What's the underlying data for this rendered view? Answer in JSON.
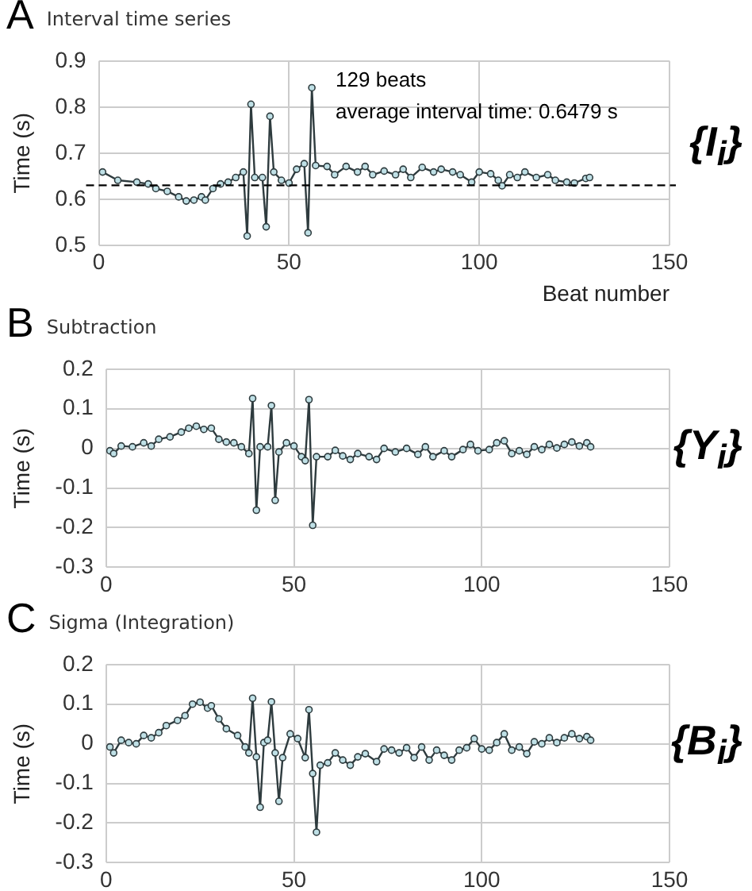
{
  "chart_data": [
    {
      "type": "line",
      "title": "Interval time series",
      "xlabel": "Beat number",
      "ylabel": "Time (s)",
      "annotations": [
        "A",
        "{I$_{i}$}",
        "129 beats",
        "average interval time: 0.6479 s"
      ],
      "series": [
        {
          "color": "#2e3b3e",
          "x": [
            1,
            5,
            10,
            13,
            15,
            18,
            21,
            23,
            25,
            27,
            28,
            30,
            32,
            34,
            36,
            38,
            39,
            40,
            41,
            43,
            44,
            45,
            46,
            48,
            50,
            52,
            54,
            55,
            56,
            57,
            60,
            62,
            65,
            68,
            70,
            72,
            75,
            78,
            80,
            82,
            85,
            88,
            90,
            93,
            95,
            98,
            100,
            103,
            105,
            106,
            108,
            110,
            112,
            115,
            118,
            120,
            123,
            125,
            128,
            129
          ],
          "values": [
            0.659,
            0.641,
            0.637,
            0.633,
            0.623,
            0.617,
            0.605,
            0.596,
            0.598,
            0.605,
            0.598,
            0.623,
            0.633,
            0.637,
            0.647,
            0.659,
            0.52,
            0.806,
            0.647,
            0.647,
            0.54,
            0.78,
            0.659,
            0.641,
            0.635,
            0.665,
            0.677,
            0.527,
            0.842,
            0.673,
            0.671,
            0.653,
            0.671,
            0.659,
            0.671,
            0.653,
            0.661,
            0.653,
            0.665,
            0.647,
            0.669,
            0.659,
            0.665,
            0.659,
            0.653,
            0.637,
            0.659,
            0.655,
            0.641,
            0.629,
            0.653,
            0.647,
            0.659,
            0.647,
            0.653,
            0.641,
            0.637,
            0.635,
            0.645,
            0.647
          ]
        }
      ],
      "xlim": [
        0,
        150
      ],
      "xticks": [
        0,
        50,
        100,
        150
      ],
      "ylim": [
        0.5,
        0.9
      ],
      "yticks": [
        0.5,
        0.6,
        0.7,
        0.8,
        0.9
      ],
      "ref_lines": [
        {
          "axis": "y",
          "value": 0.63,
          "color": "#000000",
          "line_style": "dashed"
        }
      ],
      "grid": true,
      "legend": false,
      "marker": "circle",
      "line_style": "solid"
    },
    {
      "type": "line",
      "title": "Subtraction",
      "ylabel": "Time (s)",
      "annotations": [
        "B",
        "{Y$_{i}$}"
      ],
      "series": [
        {
          "color": "#2e3b3e",
          "x": [
            1,
            2,
            4,
            7,
            10,
            12,
            14,
            17,
            20,
            22,
            24,
            26,
            28,
            30,
            32,
            34,
            36,
            38,
            39,
            40,
            41,
            43,
            44,
            45,
            46,
            48,
            50,
            52,
            53,
            54,
            55,
            56,
            59,
            61,
            63,
            65,
            67,
            70,
            72,
            74,
            77,
            80,
            83,
            85,
            87,
            90,
            92,
            95,
            97,
            99,
            102,
            104,
            106,
            108,
            110,
            112,
            114,
            116,
            118,
            120,
            122,
            124,
            126,
            128,
            129
          ],
          "values": [
            -0.006,
            -0.013,
            0.006,
            0.004,
            0.014,
            0.006,
            0.023,
            0.029,
            0.041,
            0.051,
            0.056,
            0.048,
            0.051,
            0.023,
            0.016,
            0.014,
            0.004,
            -0.013,
            0.126,
            -0.156,
            0.004,
            0.004,
            0.108,
            -0.131,
            -0.009,
            0.014,
            0.006,
            -0.021,
            -0.031,
            0.123,
            -0.194,
            -0.021,
            -0.021,
            -0.005,
            -0.019,
            -0.028,
            -0.013,
            -0.021,
            -0.028,
            0,
            -0.009,
            0,
            -0.015,
            0.004,
            -0.021,
            -0.006,
            -0.021,
            -0.003,
            0.01,
            -0.006,
            -0.003,
            0.014,
            0.019,
            -0.013,
            -0.006,
            -0.015,
            0.004,
            -0.003,
            0.01,
            0.001,
            0.01,
            0.016,
            0.006,
            0.014,
            0.004
          ]
        }
      ],
      "xlim": [
        0,
        150
      ],
      "xticks": [
        0,
        50,
        100,
        150
      ],
      "ylim": [
        -0.3,
        0.2
      ],
      "yticks": [
        -0.3,
        -0.2,
        -0.1,
        0,
        0.1,
        0.2
      ],
      "grid": true,
      "legend": false,
      "marker": "circle",
      "line_style": "solid"
    },
    {
      "type": "line",
      "title": "Sigma (Integration)",
      "ylabel": "Time (s)",
      "annotations": [
        "C",
        "{B$_{i}$}"
      ],
      "series": [
        {
          "color": "#2e3b3e",
          "x": [
            1,
            2,
            4,
            6,
            8,
            10,
            12,
            14,
            16,
            19,
            21,
            23,
            25,
            27,
            28,
            30,
            32,
            35,
            37,
            38,
            39,
            40,
            41,
            42,
            43,
            44,
            45,
            46,
            47,
            49,
            51,
            53,
            54,
            55,
            56,
            57,
            59,
            61,
            63,
            65,
            67,
            69,
            72,
            74,
            76,
            78,
            80,
            82,
            84,
            86,
            88,
            90,
            92,
            94,
            96,
            98,
            100,
            102,
            104,
            106,
            108,
            110,
            112,
            114,
            116,
            118,
            120,
            122,
            124,
            126,
            128,
            129
          ],
          "values": [
            -0.008,
            -0.023,
            0.009,
            0.003,
            0,
            0.021,
            0.015,
            0.028,
            0.046,
            0.059,
            0.071,
            0.1,
            0.105,
            0.09,
            0.096,
            0.063,
            0.038,
            0.021,
            -0.008,
            -0.023,
            0.115,
            -0.033,
            -0.16,
            0.003,
            0.009,
            0.106,
            -0.023,
            -0.145,
            -0.035,
            0.025,
            0.013,
            -0.035,
            0.086,
            -0.075,
            -0.223,
            -0.054,
            -0.048,
            -0.023,
            -0.041,
            -0.054,
            -0.033,
            -0.025,
            -0.045,
            -0.013,
            -0.016,
            -0.023,
            -0.01,
            -0.035,
            -0.008,
            -0.041,
            -0.016,
            -0.029,
            -0.041,
            -0.016,
            -0.01,
            0.013,
            -0.013,
            -0.016,
            0.003,
            0.025,
            -0.016,
            -0.008,
            -0.025,
            0.005,
            0,
            0.015,
            0.003,
            0.015,
            0.025,
            0.013,
            0.018,
            0.009
          ]
        }
      ],
      "xlim": [
        0,
        150
      ],
      "xticks": [
        0,
        50,
        100,
        150
      ],
      "ylim": [
        -0.3,
        0.2
      ],
      "yticks": [
        -0.3,
        -0.2,
        -0.1,
        0,
        0.1,
        0.2
      ],
      "grid": true,
      "legend": false,
      "marker": "circle",
      "line_style": "solid"
    }
  ]
}
